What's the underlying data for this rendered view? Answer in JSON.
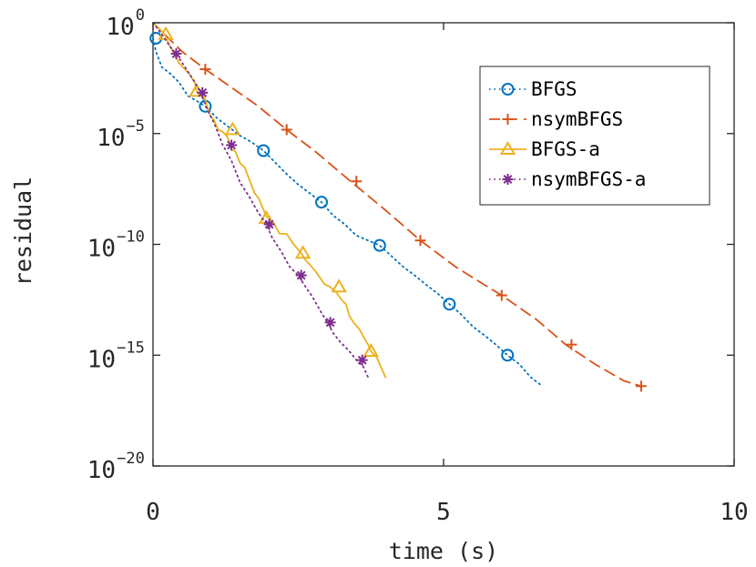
{
  "chart_data": {
    "type": "line",
    "xlabel": "time (s)",
    "ylabel": "residual",
    "xlim": [
      0,
      10
    ],
    "ylim": [
      1e-20,
      1
    ],
    "yscale": "log",
    "xticks": [
      {
        "value": 0,
        "label": "0"
      },
      {
        "value": 5,
        "label": "5"
      },
      {
        "value": 10,
        "label": "10"
      }
    ],
    "yticks": [
      {
        "exp": 0,
        "base": "10",
        "sup": "0"
      },
      {
        "exp": -5,
        "base": "10",
        "sup": "−5"
      },
      {
        "exp": -10,
        "base": "10",
        "sup": "−10"
      },
      {
        "exp": -15,
        "base": "10",
        "sup": "−15"
      },
      {
        "exp": -20,
        "base": "10",
        "sup": "−20"
      }
    ],
    "grid": false,
    "legend_position": "top-right",
    "series": [
      {
        "name": "BFGS",
        "color": "#0072BD",
        "dash": "dotted",
        "marker": "circle",
        "x": [
          0.0,
          0.05,
          0.15,
          0.3,
          0.45,
          0.6,
          0.75,
          0.9,
          1.1,
          1.3,
          1.5,
          1.7,
          1.9,
          2.1,
          2.3,
          2.5,
          2.7,
          2.9,
          3.1,
          3.3,
          3.5,
          3.7,
          3.9,
          4.1,
          4.3,
          4.5,
          4.7,
          4.9,
          5.1,
          5.3,
          5.5,
          5.7,
          5.9,
          6.1,
          6.3,
          6.5,
          6.7
        ],
        "y": [
          0.2,
          0.05,
          0.01,
          0.005,
          0.002,
          0.0005,
          0.0003,
          0.00017,
          5e-05,
          2e-05,
          8e-06,
          4e-06,
          1.7e-06,
          5e-07,
          1.5e-07,
          5e-08,
          2e-08,
          8e-09,
          2e-09,
          8e-10,
          2.5e-10,
          1.5e-10,
          9e-11,
          3e-11,
          1e-11,
          4e-12,
          1.5e-12,
          6e-13,
          2e-13,
          7e-14,
          2e-14,
          8e-15,
          3e-15,
          1e-15,
          4e-16,
          1e-16,
          4e-17
        ],
        "markers_x": [
          0.05,
          0.9,
          1.9,
          2.9,
          3.9,
          5.1,
          6.1
        ],
        "markers_y": [
          0.2,
          0.00017,
          1.7e-06,
          8e-09,
          9e-11,
          2e-13,
          1e-15
        ]
      },
      {
        "name": "nsymBFGS",
        "color": "#D95319",
        "dash": "dashed",
        "marker": "plus",
        "x": [
          0.0,
          0.2,
          0.5,
          0.9,
          1.3,
          1.8,
          2.3,
          2.8,
          3.4,
          4.0,
          4.6,
          5.2,
          5.7,
          6.0,
          6.6,
          7.1,
          7.6,
          8.1,
          8.4
        ],
        "y": [
          1.0,
          0.3,
          0.05,
          0.008,
          0.0015,
          0.00018,
          1.5e-05,
          1.5e-06,
          7e-08,
          3.5e-09,
          1.5e-10,
          1e-11,
          1.5e-12,
          5e-13,
          4e-14,
          3e-15,
          4e-16,
          7e-17,
          4e-17
        ],
        "markers_x": [
          0.9,
          2.3,
          3.5,
          4.6,
          6.0,
          7.2,
          8.4
        ],
        "markers_y": [
          0.008,
          1.5e-05,
          7e-08,
          1.5e-10,
          5e-13,
          3e-15,
          4e-17
        ]
      },
      {
        "name": "BFGS-a",
        "color": "#EDB120",
        "dash": "solid",
        "marker": "triangle",
        "x": [
          0.0,
          0.12,
          0.2,
          0.28,
          0.36,
          0.45,
          0.55,
          0.62,
          0.72,
          0.75,
          0.82,
          0.88,
          0.92,
          0.98,
          1.05,
          1.12,
          1.2,
          1.28,
          1.35,
          1.42,
          1.5,
          1.58,
          1.62,
          1.68,
          1.75,
          1.82,
          1.88,
          1.95,
          2.0,
          2.08,
          2.18,
          2.3,
          2.42,
          2.55,
          2.62,
          2.7,
          2.8,
          2.88,
          2.95,
          3.05,
          3.15,
          3.25,
          3.32,
          3.38,
          3.45,
          3.55,
          3.65,
          3.7,
          3.75,
          3.85,
          3.92,
          4.0
        ],
        "y": [
          1.0,
          0.5,
          0.3,
          0.1,
          0.04,
          0.015,
          0.008,
          0.005,
          0.002,
          0.0008,
          0.0005,
          0.0006,
          0.0002,
          7e-05,
          4e-05,
          1.5e-05,
          1.2e-05,
          7e-06,
          2e-06,
          1.5e-06,
          4.5e-07,
          3e-07,
          1.5e-07,
          6e-08,
          2e-08,
          1.2e-08,
          5e-09,
          1.8e-09,
          1.5e-09,
          9e-10,
          3e-10,
          3e-10,
          1e-10,
          4e-11,
          2e-11,
          1.2e-11,
          6e-12,
          3e-12,
          1.6e-12,
          1.2e-12,
          7e-13,
          3e-13,
          2e-13,
          6e-14,
          3e-14,
          1.5e-14,
          5e-15,
          3e-15,
          1.5e-15,
          8e-16,
          3e-16,
          1e-16
        ],
        "markers_x": [
          0.22,
          0.75,
          1.37,
          1.95,
          2.58,
          3.2,
          3.75
        ],
        "markers_y": [
          0.3,
          0.0008,
          1.5e-05,
          1.5e-09,
          4e-11,
          1.2e-12,
          1.5e-15
        ]
      },
      {
        "name": "nsymBFGS-a",
        "color": "#7E2F8E",
        "dash": "dotted",
        "marker": "asterisk",
        "x": [
          0.0,
          0.15,
          0.3,
          0.4,
          0.55,
          0.7,
          0.82,
          0.95,
          1.05,
          1.2,
          1.35,
          1.5,
          1.65,
          1.8,
          1.95,
          2.05,
          2.2,
          2.35,
          2.5,
          2.6,
          2.75,
          2.88,
          3.0,
          3.1,
          3.22,
          3.38,
          3.5,
          3.62,
          3.7
        ],
        "y": [
          1.0,
          0.3,
          0.08,
          0.04,
          0.01,
          0.0025,
          0.0007,
          0.0001,
          3e-05,
          3e-06,
          6e-07,
          6e-08,
          1.5e-08,
          3e-09,
          8e-10,
          2e-10,
          5e-11,
          1e-11,
          4e-12,
          1.5e-12,
          4e-13,
          1e-13,
          3e-14,
          1e-14,
          4e-15,
          1.5e-15,
          6e-16,
          3e-16,
          1e-16
        ],
        "markers_x": [
          0.4,
          0.85,
          1.35,
          2.0,
          2.55,
          3.05,
          3.6
        ],
        "markers_y": [
          0.04,
          0.0007,
          3e-06,
          8e-10,
          4e-12,
          3e-14,
          6e-16
        ]
      }
    ]
  }
}
